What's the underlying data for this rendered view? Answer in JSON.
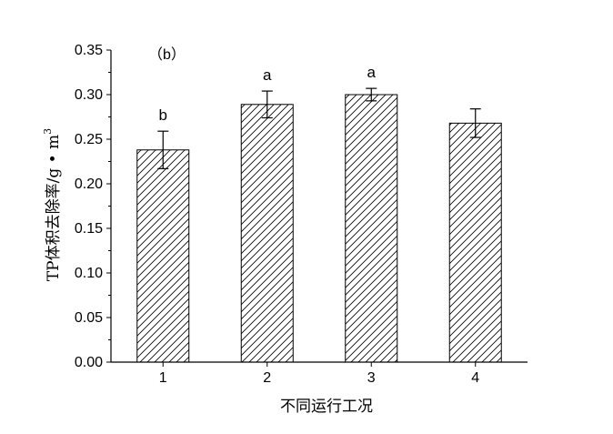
{
  "chart_data": {
    "type": "bar",
    "panel_label": "（b）",
    "categories": [
      "1",
      "2",
      "3",
      "4"
    ],
    "values": [
      0.238,
      0.289,
      0.3,
      0.268
    ],
    "error_bars": [
      0.021,
      0.015,
      0.007,
      0.016
    ],
    "significance_labels": [
      "b",
      "a",
      "a",
      ""
    ],
    "xlabel": "不同运行工况",
    "ylabel": "TP体积去除率/g • m",
    "ylabel_superscript": "3",
    "ylim": [
      0,
      0.35
    ],
    "yticks": [
      "0.00",
      "0.05",
      "0.10",
      "0.15",
      "0.20",
      "0.25",
      "0.30",
      "0.35"
    ],
    "grid": false,
    "bar_pattern": "diagonal-hatch",
    "colors": {
      "axis": "#000000",
      "bar_fill": "#ffffff",
      "hatch": "#000000"
    }
  }
}
